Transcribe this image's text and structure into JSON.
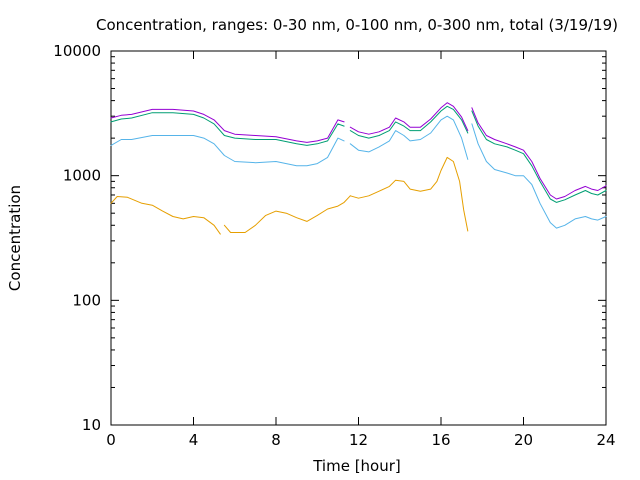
{
  "chart_data": {
    "type": "line",
    "title": "Concentration, ranges: 0-30 nm, 0-100 nm, 0-300 nm, total (3/19/19)",
    "xlabel": "Time [hour]",
    "ylabel": "Concentration",
    "xlim": [
      0,
      24
    ],
    "ylim": [
      10,
      10000
    ],
    "yscale": "log",
    "x_ticks": [
      0,
      4,
      8,
      12,
      16,
      20,
      24
    ],
    "x_tick_labels": [
      "0",
      "4",
      "8",
      "12",
      "16",
      "20",
      "24"
    ],
    "y_ticks": [
      10,
      100,
      1000,
      10000
    ],
    "y_tick_labels": [
      "10",
      "100",
      "1000",
      "10000"
    ],
    "grid": false,
    "legend": "none",
    "series": [
      {
        "color": "#e69f00",
        "segments": [
          [
            [
              0.0,
              600
            ],
            [
              0.3,
              680
            ],
            [
              0.8,
              670
            ],
            [
              1.5,
              600
            ],
            [
              2.0,
              580
            ],
            [
              2.5,
              520
            ],
            [
              3.0,
              470
            ],
            [
              3.5,
              450
            ],
            [
              4.0,
              470
            ],
            [
              4.5,
              460
            ],
            [
              5.0,
              400
            ],
            [
              5.3,
              340
            ]
          ],
          [
            [
              5.5,
              400
            ],
            [
              5.8,
              350
            ],
            [
              6.5,
              350
            ],
            [
              7.0,
              400
            ],
            [
              7.5,
              480
            ],
            [
              8.0,
              520
            ],
            [
              8.5,
              500
            ],
            [
              9.0,
              460
            ],
            [
              9.5,
              430
            ],
            [
              10.0,
              480
            ],
            [
              10.5,
              540
            ],
            [
              11.0,
              570
            ],
            [
              11.3,
              610
            ],
            [
              11.6,
              690
            ]
          ],
          [
            [
              11.6,
              690
            ],
            [
              12.0,
              660
            ],
            [
              12.5,
              690
            ],
            [
              13.0,
              750
            ],
            [
              13.5,
              820
            ],
            [
              13.8,
              920
            ],
            [
              14.2,
              900
            ],
            [
              14.5,
              780
            ],
            [
              15.0,
              750
            ],
            [
              15.5,
              780
            ],
            [
              15.8,
              900
            ],
            [
              16.0,
              1100
            ],
            [
              16.3,
              1400
            ],
            [
              16.6,
              1300
            ],
            [
              16.9,
              900
            ],
            [
              17.1,
              530
            ],
            [
              17.3,
              360
            ]
          ]
        ]
      },
      {
        "color": "#56b4e9",
        "segments": [
          [
            [
              0.0,
              1750
            ],
            [
              0.5,
              1950
            ],
            [
              1.0,
              1950
            ],
            [
              2.0,
              2100
            ],
            [
              3.0,
              2100
            ],
            [
              4.0,
              2100
            ],
            [
              4.5,
              2000
            ],
            [
              5.0,
              1800
            ],
            [
              5.5,
              1450
            ],
            [
              6.0,
              1300
            ],
            [
              7.0,
              1270
            ],
            [
              8.0,
              1300
            ],
            [
              9.0,
              1200
            ],
            [
              9.5,
              1200
            ],
            [
              10.0,
              1250
            ],
            [
              10.5,
              1400
            ],
            [
              11.0,
              2000
            ],
            [
              11.3,
              1900
            ]
          ],
          [
            [
              11.6,
              1800
            ],
            [
              12.0,
              1600
            ],
            [
              12.5,
              1550
            ],
            [
              13.0,
              1700
            ],
            [
              13.5,
              1900
            ],
            [
              13.8,
              2300
            ],
            [
              14.2,
              2100
            ],
            [
              14.5,
              1900
            ],
            [
              15.0,
              1950
            ],
            [
              15.5,
              2200
            ],
            [
              16.0,
              2800
            ],
            [
              16.3,
              3000
            ],
            [
              16.6,
              2800
            ],
            [
              17.0,
              2000
            ],
            [
              17.3,
              1350
            ]
          ],
          [
            [
              17.5,
              2600
            ],
            [
              17.8,
              1800
            ],
            [
              18.2,
              1300
            ],
            [
              18.6,
              1120
            ],
            [
              19.2,
              1050
            ],
            [
              19.6,
              1000
            ],
            [
              20.0,
              1000
            ],
            [
              20.4,
              850
            ],
            [
              20.8,
              600
            ],
            [
              21.3,
              420
            ],
            [
              21.6,
              380
            ],
            [
              22.0,
              400
            ],
            [
              22.5,
              450
            ],
            [
              23.0,
              470
            ],
            [
              23.3,
              450
            ],
            [
              23.6,
              440
            ],
            [
              24.0,
              470
            ]
          ]
        ]
      },
      {
        "color": "#009e73",
        "segments": [
          [
            [
              0.0,
              2700
            ],
            [
              0.5,
              2850
            ],
            [
              1.0,
              2900
            ],
            [
              2.0,
              3200
            ],
            [
              3.0,
              3200
            ],
            [
              4.0,
              3100
            ],
            [
              4.5,
              2900
            ],
            [
              5.0,
              2600
            ],
            [
              5.5,
              2100
            ],
            [
              6.0,
              2000
            ],
            [
              7.0,
              1950
            ],
            [
              8.0,
              1950
            ],
            [
              9.0,
              1800
            ],
            [
              9.5,
              1750
            ],
            [
              10.0,
              1800
            ],
            [
              10.5,
              1900
            ],
            [
              11.0,
              2600
            ],
            [
              11.3,
              2500
            ]
          ],
          [
            [
              11.6,
              2300
            ],
            [
              12.0,
              2100
            ],
            [
              12.5,
              2000
            ],
            [
              13.0,
              2100
            ],
            [
              13.5,
              2300
            ],
            [
              13.8,
              2700
            ],
            [
              14.2,
              2500
            ],
            [
              14.5,
              2300
            ],
            [
              15.0,
              2300
            ],
            [
              15.5,
              2700
            ],
            [
              16.0,
              3300
            ],
            [
              16.3,
              3600
            ],
            [
              16.6,
              3400
            ],
            [
              17.0,
              2800
            ],
            [
              17.3,
              2200
            ]
          ],
          [
            [
              17.5,
              3300
            ],
            [
              17.8,
              2500
            ],
            [
              18.2,
              1950
            ],
            [
              18.6,
              1800
            ],
            [
              19.2,
              1700
            ],
            [
              19.6,
              1600
            ],
            [
              20.0,
              1500
            ],
            [
              20.4,
              1200
            ],
            [
              20.8,
              900
            ],
            [
              21.3,
              650
            ],
            [
              21.6,
              610
            ],
            [
              22.0,
              640
            ],
            [
              22.5,
              700
            ],
            [
              23.0,
              760
            ],
            [
              23.3,
              720
            ],
            [
              23.6,
              700
            ],
            [
              24.0,
              760
            ]
          ]
        ]
      },
      {
        "color": "#9400d3",
        "segments": [
          [
            [
              0.0,
              2900
            ],
            [
              0.5,
              3050
            ],
            [
              1.0,
              3100
            ],
            [
              2.0,
              3400
            ],
            [
              3.0,
              3400
            ],
            [
              4.0,
              3300
            ],
            [
              4.5,
              3100
            ],
            [
              5.0,
              2800
            ],
            [
              5.5,
              2300
            ],
            [
              6.0,
              2150
            ],
            [
              7.0,
              2100
            ],
            [
              8.0,
              2050
            ],
            [
              9.0,
              1900
            ],
            [
              9.5,
              1850
            ],
            [
              10.0,
              1900
            ],
            [
              10.5,
              2000
            ],
            [
              11.0,
              2800
            ],
            [
              11.3,
              2700
            ]
          ],
          [
            [
              11.6,
              2450
            ],
            [
              12.0,
              2250
            ],
            [
              12.5,
              2150
            ],
            [
              13.0,
              2250
            ],
            [
              13.5,
              2450
            ],
            [
              13.8,
              2900
            ],
            [
              14.2,
              2700
            ],
            [
              14.5,
              2450
            ],
            [
              15.0,
              2450
            ],
            [
              15.5,
              2850
            ],
            [
              16.0,
              3500
            ],
            [
              16.3,
              3850
            ],
            [
              16.6,
              3600
            ],
            [
              17.0,
              2950
            ],
            [
              17.3,
              2300
            ]
          ],
          [
            [
              17.5,
              3500
            ],
            [
              17.8,
              2650
            ],
            [
              18.2,
              2100
            ],
            [
              18.6,
              1950
            ],
            [
              19.2,
              1800
            ],
            [
              19.6,
              1700
            ],
            [
              20.0,
              1600
            ],
            [
              20.4,
              1300
            ],
            [
              20.8,
              950
            ],
            [
              21.3,
              700
            ],
            [
              21.6,
              650
            ],
            [
              22.0,
              680
            ],
            [
              22.5,
              760
            ],
            [
              23.0,
              820
            ],
            [
              23.3,
              780
            ],
            [
              23.6,
              760
            ],
            [
              24.0,
              830
            ]
          ]
        ]
      }
    ]
  }
}
